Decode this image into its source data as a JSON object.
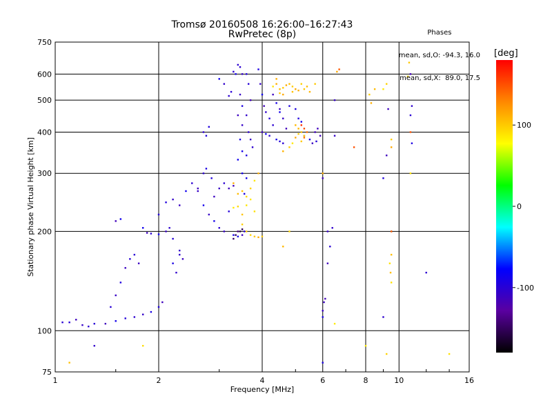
{
  "header": {
    "title": "Tromsø 20160508 16:26:00–16:27:43",
    "subtitle": "RwPretec (8p)"
  },
  "phase_info": {
    "heading": "Phases",
    "line1": "mean, sd,O: -94.3, 16.0",
    "line2": "mean, sd,X:  89.0, 17.5"
  },
  "colorbar": {
    "unit": "[deg]",
    "labels": [
      "100",
      "0",
      "-100"
    ],
    "range": [
      -180,
      180
    ],
    "colors": [
      "#000000",
      "#5a00a0",
      "#0000ff",
      "#00ffff",
      "#00ff00",
      "#ffff00",
      "#ff8800",
      "#ff0000"
    ]
  },
  "chart_data": {
    "type": "scatter",
    "xlabel": "Frequency [MHz]",
    "ylabel": "Stationary phase Virtual Height [km]",
    "xscale": "log",
    "yscale": "log",
    "xlim": [
      1,
      16
    ],
    "ylim": [
      75,
      750
    ],
    "xticks": [
      1,
      2,
      4,
      6,
      8,
      10,
      16
    ],
    "yticks": [
      75,
      100,
      200,
      300,
      400,
      500,
      600,
      750
    ],
    "grid": true,
    "color_by": "phase (deg)",
    "series": [
      {
        "mode": "O",
        "phase": -100,
        "points": [
          [
            1.05,
            106
          ],
          [
            1.1,
            106
          ],
          [
            1.15,
            108
          ],
          [
            1.2,
            104
          ],
          [
            1.25,
            103
          ],
          [
            1.3,
            105
          ],
          [
            1.4,
            105
          ],
          [
            1.5,
            107
          ],
          [
            1.6,
            109
          ],
          [
            1.7,
            110
          ],
          [
            1.8,
            112
          ],
          [
            1.9,
            114
          ],
          [
            2.0,
            118
          ],
          [
            2.05,
            122
          ],
          [
            1.45,
            118
          ],
          [
            1.5,
            128
          ],
          [
            1.55,
            140
          ],
          [
            1.6,
            155
          ],
          [
            1.65,
            165
          ],
          [
            1.7,
            170
          ],
          [
            1.75,
            160
          ],
          [
            1.5,
            215
          ],
          [
            1.55,
            218
          ],
          [
            1.8,
            205
          ],
          [
            1.85,
            198
          ],
          [
            1.9,
            197
          ],
          [
            2.0,
            196
          ],
          [
            2.1,
            200
          ],
          [
            2.15,
            205
          ],
          [
            2.0,
            225
          ],
          [
            2.1,
            245
          ],
          [
            2.2,
            250
          ],
          [
            2.3,
            240
          ],
          [
            2.4,
            265
          ],
          [
            2.5,
            280
          ],
          [
            2.6,
            265
          ],
          [
            2.2,
            190
          ],
          [
            2.3,
            175
          ],
          [
            2.35,
            165
          ],
          [
            2.2,
            160
          ],
          [
            2.25,
            150
          ],
          [
            2.3,
            170
          ],
          [
            2.6,
            270
          ],
          [
            2.7,
            240
          ],
          [
            2.8,
            225
          ],
          [
            2.9,
            215
          ],
          [
            3.0,
            205
          ],
          [
            3.1,
            200
          ],
          [
            3.2,
            230
          ],
          [
            2.7,
            300
          ],
          [
            2.75,
            310
          ],
          [
            2.85,
            290
          ],
          [
            2.9,
            255
          ],
          [
            3.0,
            270
          ],
          [
            3.1,
            280
          ],
          [
            3.2,
            270
          ],
          [
            3.3,
            275
          ],
          [
            2.7,
            400
          ],
          [
            2.75,
            390
          ],
          [
            2.8,
            415
          ],
          [
            3.0,
            580
          ],
          [
            3.1,
            560
          ],
          [
            3.2,
            515
          ],
          [
            3.25,
            530
          ],
          [
            3.3,
            610
          ],
          [
            3.35,
            600
          ],
          [
            3.4,
            640
          ],
          [
            3.45,
            630
          ],
          [
            3.5,
            600
          ],
          [
            3.45,
            520
          ],
          [
            3.5,
            480
          ],
          [
            3.4,
            450
          ],
          [
            3.5,
            420
          ],
          [
            3.45,
            380
          ],
          [
            3.5,
            350
          ],
          [
            3.4,
            330
          ],
          [
            3.5,
            300
          ],
          [
            3.6,
            290
          ],
          [
            3.55,
            260
          ],
          [
            3.6,
            600
          ],
          [
            3.65,
            560
          ],
          [
            3.7,
            500
          ],
          [
            3.6,
            450
          ],
          [
            3.65,
            400
          ],
          [
            3.7,
            380
          ],
          [
            3.75,
            360
          ],
          [
            3.6,
            340
          ],
          [
            3.9,
            620
          ],
          [
            3.95,
            560
          ],
          [
            4.0,
            520
          ],
          [
            4.05,
            480
          ],
          [
            4.1,
            460
          ],
          [
            4.2,
            440
          ],
          [
            4.3,
            420
          ],
          [
            4.0,
            400
          ],
          [
            4.1,
            395
          ],
          [
            4.2,
            390
          ],
          [
            4.4,
            380
          ],
          [
            4.5,
            375
          ],
          [
            4.6,
            370
          ],
          [
            4.3,
            520
          ],
          [
            4.4,
            490
          ],
          [
            4.5,
            460
          ],
          [
            4.6,
            440
          ],
          [
            4.7,
            410
          ],
          [
            4.5,
            470
          ],
          [
            4.8,
            480
          ],
          [
            5.0,
            470
          ],
          [
            5.1,
            440
          ],
          [
            5.2,
            430
          ],
          [
            5.3,
            390
          ],
          [
            5.5,
            380
          ],
          [
            5.6,
            370
          ],
          [
            5.7,
            400
          ],
          [
            5.8,
            410
          ],
          [
            5.9,
            390
          ],
          [
            5.75,
            375
          ],
          [
            3.3,
            195
          ],
          [
            3.4,
            193
          ],
          [
            3.5,
            195
          ],
          [
            3.55,
            200
          ],
          [
            6.0,
            290
          ],
          [
            6.2,
            200
          ],
          [
            6.3,
            180
          ],
          [
            6.2,
            160
          ],
          [
            6.4,
            205
          ],
          [
            6.5,
            500
          ],
          [
            6.5,
            390
          ],
          [
            6.0,
            110
          ],
          [
            6.0,
            115
          ],
          [
            6.05,
            122
          ],
          [
            6.1,
            125
          ],
          [
            9.0,
            290
          ],
          [
            9.2,
            340
          ],
          [
            9.0,
            110
          ],
          [
            9.3,
            470
          ],
          [
            10.8,
            450
          ],
          [
            10.9,
            480
          ],
          [
            10.8,
            600
          ],
          [
            10.9,
            370
          ],
          [
            12.0,
            150
          ],
          [
            6.0,
            80
          ],
          [
            1.3,
            90
          ]
        ]
      },
      {
        "mode": "X",
        "phase": 100,
        "points": [
          [
            3.3,
            280
          ],
          [
            3.4,
            260
          ],
          [
            3.5,
            265
          ],
          [
            3.6,
            255
          ],
          [
            3.7,
            270
          ],
          [
            3.8,
            285
          ],
          [
            3.9,
            300
          ],
          [
            3.6,
            240
          ],
          [
            3.7,
            250
          ],
          [
            3.8,
            230
          ],
          [
            3.4,
            238
          ],
          [
            3.3,
            236
          ],
          [
            3.5,
            225
          ],
          [
            3.6,
            200
          ],
          [
            3.7,
            195
          ],
          [
            3.8,
            193
          ],
          [
            3.9,
            192
          ],
          [
            4.0,
            193
          ],
          [
            3.5,
            210
          ],
          [
            4.3,
            550
          ],
          [
            4.4,
            560
          ],
          [
            4.5,
            540
          ],
          [
            4.6,
            545
          ],
          [
            4.7,
            555
          ],
          [
            4.8,
            560
          ],
          [
            4.9,
            550
          ],
          [
            5.0,
            540
          ],
          [
            5.1,
            535
          ],
          [
            5.2,
            560
          ],
          [
            5.3,
            540
          ],
          [
            5.4,
            550
          ],
          [
            5.5,
            530
          ],
          [
            4.4,
            580
          ],
          [
            4.5,
            525
          ],
          [
            4.6,
            520
          ],
          [
            4.9,
            530
          ],
          [
            4.6,
            350
          ],
          [
            4.8,
            360
          ],
          [
            4.9,
            370
          ],
          [
            5.0,
            385
          ],
          [
            5.1,
            395
          ],
          [
            5.2,
            400
          ],
          [
            5.3,
            390
          ],
          [
            5.0,
            420
          ],
          [
            5.1,
            410
          ],
          [
            5.2,
            375
          ],
          [
            8.2,
            520
          ],
          [
            8.3,
            490
          ],
          [
            8.5,
            540
          ],
          [
            9.0,
            540
          ],
          [
            9.2,
            560
          ],
          [
            9.5,
            380
          ],
          [
            9.5,
            360
          ],
          [
            9.5,
            170
          ],
          [
            9.4,
            160
          ],
          [
            9.45,
            150
          ],
          [
            9.5,
            140
          ],
          [
            10.8,
            300
          ],
          [
            10.7,
            650
          ],
          [
            10.6,
            590
          ],
          [
            6.5,
            105
          ],
          [
            6.6,
            610
          ],
          [
            5.7,
            560
          ],
          [
            8.0,
            90
          ],
          [
            9.2,
            85
          ],
          [
            14.0,
            85
          ],
          [
            1.1,
            80
          ],
          [
            1.8,
            90
          ],
          [
            4.6,
            180
          ],
          [
            4.8,
            200
          ],
          [
            6.0,
            300
          ]
        ]
      },
      {
        "mode": "O-tail",
        "phase": -150,
        "points": [
          [
            3.3,
            190
          ],
          [
            3.35,
            195
          ],
          [
            3.4,
            200
          ],
          [
            3.45,
            200
          ],
          [
            3.5,
            203
          ],
          [
            9.5,
            200
          ]
        ]
      },
      {
        "mode": "X-hot",
        "phase": 150,
        "points": [
          [
            5.2,
            420
          ],
          [
            5.3,
            410
          ],
          [
            5.4,
            400
          ],
          [
            5.3,
            385
          ],
          [
            10.8,
            400
          ],
          [
            9.5,
            200
          ],
          [
            6.7,
            620
          ],
          [
            7.4,
            360
          ]
        ]
      }
    ]
  }
}
